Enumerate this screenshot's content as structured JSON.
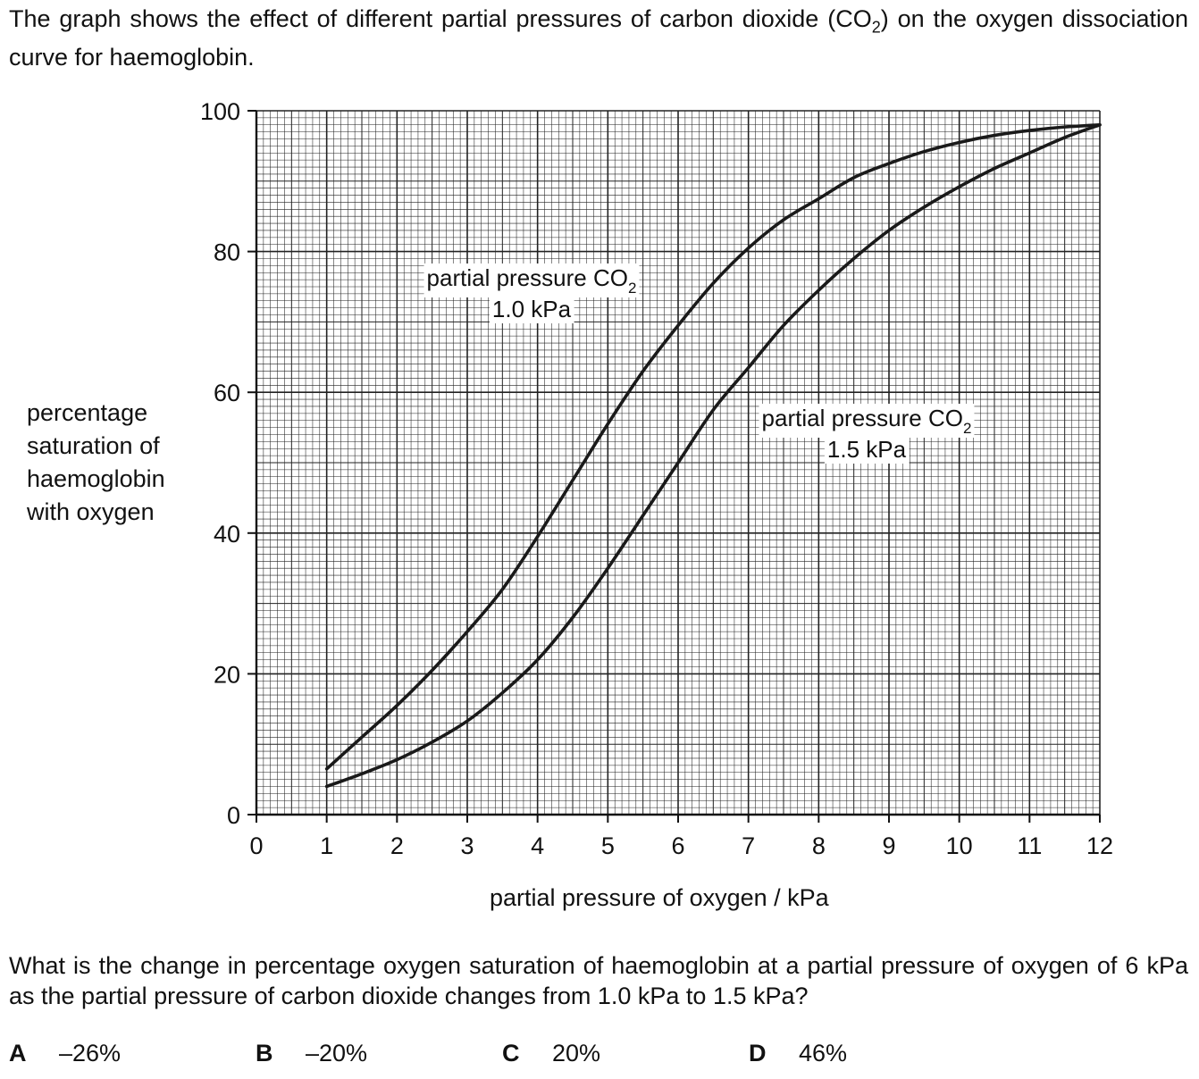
{
  "intro": {
    "line1": "The graph shows the effect of different partial pressures of carbon dioxide (CO",
    "sub": "2",
    "line1_end": ") on the oxygen dissociation curve for haemoglobin."
  },
  "chart_data": {
    "type": "line",
    "xlabel": "partial pressure of oxygen / kPa",
    "ylabel_lines": [
      "percentage",
      "saturation of",
      "haemoglobin",
      "with oxygen"
    ],
    "xlim": [
      0,
      12
    ],
    "ylim": [
      0,
      100
    ],
    "x_ticks": [
      "0",
      "1",
      "2",
      "3",
      "4",
      "5",
      "6",
      "7",
      "8",
      "9",
      "10",
      "11",
      "12"
    ],
    "y_ticks": [
      "0",
      "20",
      "40",
      "60",
      "80",
      "100"
    ],
    "grid": true,
    "series": [
      {
        "label_line1": "partial pressure CO",
        "label_sub": "2",
        "label_line2": "1.0 kPa",
        "x": [
          1,
          1.5,
          2,
          2.5,
          3,
          3.5,
          4,
          4.5,
          5,
          5.5,
          6,
          6.5,
          7,
          7.5,
          8,
          8.5,
          9,
          9.5,
          10,
          10.5,
          11,
          11.5,
          12
        ],
        "y": [
          6.5,
          11,
          15.5,
          20.5,
          26,
          32,
          39.5,
          47.5,
          55.5,
          63,
          69.5,
          75.5,
          80.5,
          84.5,
          87.5,
          90.5,
          92.5,
          94.2,
          95.5,
          96.5,
          97.2,
          97.7,
          98
        ]
      },
      {
        "label_line1": "partial pressure CO",
        "label_sub": "2",
        "label_line2": "1.5 kPa",
        "x": [
          1,
          1.5,
          2,
          2.5,
          3,
          3.5,
          4,
          4.5,
          5,
          5.5,
          6,
          6.5,
          7,
          7.5,
          8,
          8.5,
          9,
          9.5,
          10,
          10.5,
          11,
          11.5,
          12
        ],
        "y": [
          4,
          5.8,
          7.8,
          10.3,
          13.3,
          17.3,
          22,
          28,
          35,
          42.5,
          50,
          57.5,
          63.5,
          69.5,
          74.5,
          79,
          83,
          86.3,
          89.2,
          91.8,
          94,
          96.2,
          98
        ]
      }
    ]
  },
  "question": {
    "text": "What is the change in percentage oxygen saturation of haemoglobin at a partial pressure of oxygen of 6 kPa as the partial pressure of carbon dioxide changes from 1.0 kPa to 1.5 kPa?"
  },
  "options": [
    {
      "letter": "A",
      "value": "–26%"
    },
    {
      "letter": "B",
      "value": "–20%"
    },
    {
      "letter": "C",
      "value": "20%"
    },
    {
      "letter": "D",
      "value": "46%"
    }
  ]
}
